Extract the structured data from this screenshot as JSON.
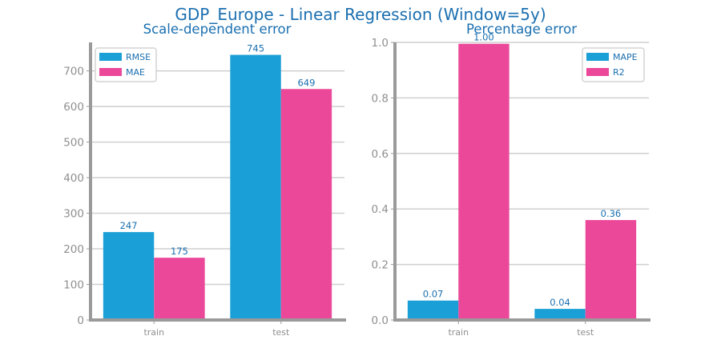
{
  "figure": {
    "title": "GDP_Europe - Linear Regression (Window=5y)",
    "colors": {
      "series1": "#1a9fd6",
      "series2": "#eb489a",
      "text": "#1a6fb0",
      "axis": "#9a9a9a",
      "grid": "#cfcfcf",
      "tick": "#8f8f8f"
    }
  },
  "chart_data": [
    {
      "type": "bar",
      "title": "Scale-dependent error",
      "categories": [
        "train",
        "test"
      ],
      "series": [
        {
          "name": "RMSE",
          "values": [
            247,
            745
          ],
          "labels": [
            "247",
            "745"
          ]
        },
        {
          "name": "MAE",
          "values": [
            175,
            649
          ],
          "labels": [
            "175",
            "649"
          ]
        }
      ],
      "ylim": [
        0,
        780
      ],
      "yticks": [
        0,
        100,
        200,
        300,
        400,
        500,
        600,
        700
      ],
      "ytick_labels": [
        "0",
        "100",
        "200",
        "300",
        "400",
        "500",
        "600",
        "700"
      ],
      "grid": true,
      "legend": "top-left"
    },
    {
      "type": "bar",
      "title": "Percentage error",
      "categories": [
        "train",
        "test"
      ],
      "series": [
        {
          "name": "MAPE",
          "values": [
            0.07,
            0.04
          ],
          "labels": [
            "0.07",
            "0.04"
          ]
        },
        {
          "name": "R2",
          "values": [
            0.995,
            0.36
          ],
          "labels": [
            "1.00",
            "0.36"
          ]
        }
      ],
      "ylim": [
        0,
        1.0
      ],
      "yticks": [
        0.0,
        0.2,
        0.4,
        0.6,
        0.8,
        1.0
      ],
      "ytick_labels": [
        "0.0",
        "0.2",
        "0.4",
        "0.6",
        "0.8",
        "1.0"
      ],
      "grid": true,
      "legend": "top-right"
    }
  ]
}
